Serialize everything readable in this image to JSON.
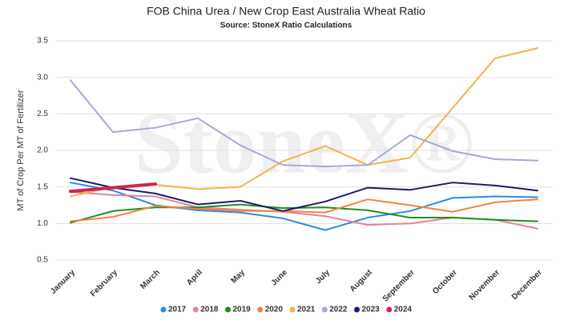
{
  "chart_data": {
    "type": "line",
    "title": "FOB China Urea / New Crop East Australia Wheat Ratio",
    "subtitle": "Source: StoneX Ratio Calculations",
    "y_label": "MT of Crop Per MT of Fertilizer",
    "watermark": "StoneX®",
    "categories": [
      "January",
      "February",
      "March",
      "April",
      "May",
      "June",
      "July",
      "August",
      "September",
      "October",
      "November",
      "December"
    ],
    "ylim": [
      0.5,
      3.5
    ],
    "yticks": [
      0.5,
      {
        "value": 1,
        "label": "1.0"
      },
      1.5,
      {
        "value": 2,
        "label": "2.0"
      },
      2.5,
      {
        "value": 3,
        "label": "3.0"
      },
      3.5
    ],
    "grid": true,
    "legend": "bottom",
    "series": [
      {
        "name": "2017",
        "color": "#2b8be0",
        "values": [
          1.56,
          1.45,
          1.25,
          1.18,
          1.15,
          1.07,
          0.91,
          1.08,
          1.17,
          1.35,
          1.37,
          1.36
        ]
      },
      {
        "name": "2018",
        "color": "#e0839f",
        "values": [
          1.43,
          1.39,
          1.37,
          1.22,
          1.19,
          1.16,
          1.1,
          0.98,
          1.0,
          1.08,
          1.05,
          0.93
        ]
      },
      {
        "name": "2019",
        "color": "#1f8c22",
        "values": [
          1.01,
          1.17,
          1.22,
          1.22,
          1.26,
          1.21,
          1.22,
          1.18,
          1.08,
          1.08,
          1.05,
          1.03
        ]
      },
      {
        "name": "2020",
        "color": "#f0843f",
        "values": [
          1.03,
          1.09,
          1.24,
          1.2,
          1.17,
          1.17,
          1.15,
          1.33,
          1.25,
          1.16,
          1.29,
          1.33
        ]
      },
      {
        "name": "2021",
        "color": "#f4b24a",
        "values": [
          1.37,
          1.5,
          1.53,
          1.47,
          1.5,
          1.85,
          2.06,
          1.8,
          1.9,
          2.58,
          3.26,
          3.4
        ]
      },
      {
        "name": "2022",
        "color": "#a8a8d6",
        "values": [
          2.96,
          2.25,
          2.31,
          2.44,
          2.07,
          1.8,
          1.78,
          1.8,
          2.21,
          1.99,
          1.88,
          1.86
        ]
      },
      {
        "name": "2023",
        "color": "#1b1b6b",
        "values": [
          1.62,
          1.49,
          1.41,
          1.26,
          1.31,
          1.17,
          1.3,
          1.49,
          1.46,
          1.56,
          1.52,
          1.45
        ]
      },
      {
        "name": "2024",
        "color": "#cf2550",
        "values": [
          1.44,
          1.49,
          1.54,
          null,
          null,
          null,
          null,
          null,
          null,
          null,
          null,
          null
        ]
      }
    ]
  }
}
